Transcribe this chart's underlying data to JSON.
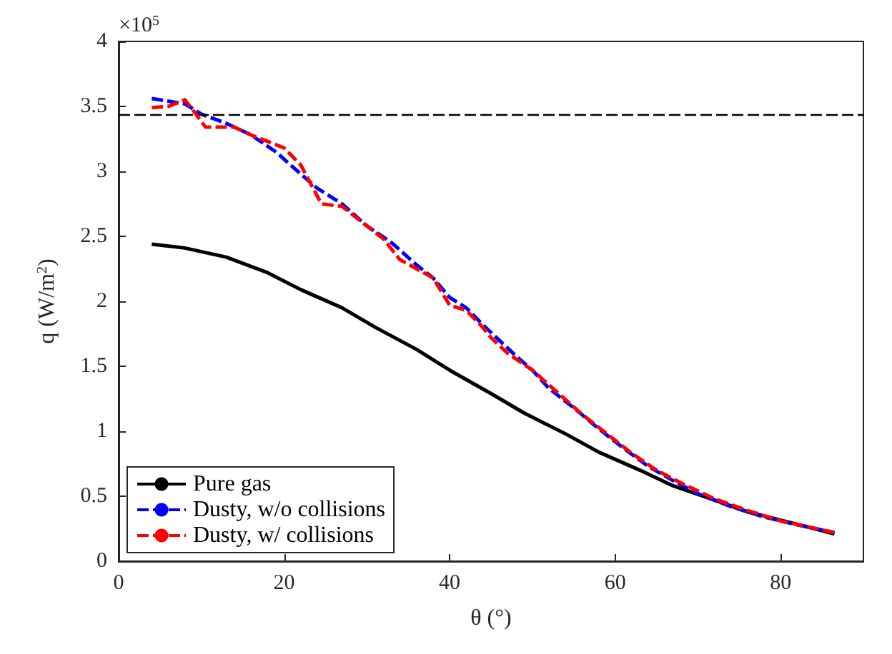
{
  "chart_data": {
    "type": "line",
    "xlabel": "θ (°)",
    "ylabel": "q (W/m$^{2}$)",
    "annotations": [
      "×10$^{5}$"
    ],
    "xlim": [
      0,
      90
    ],
    "xticks": [
      0,
      20,
      40,
      60,
      80
    ],
    "ylim": [
      0,
      4
    ],
    "yticks": [
      0,
      0.5,
      1,
      1.5,
      2,
      2.5,
      3,
      3.5,
      4
    ],
    "grid": false,
    "legend": "bottom left",
    "marker": "none",
    "ref_lines": [
      {
        "axis": "y",
        "value": 3.44,
        "color": "#000000",
        "line_style": "dashed"
      }
    ],
    "series": [
      {
        "name": "Pure gas",
        "color": "#000000",
        "line_style": "solid",
        "x": [
          4,
          8,
          13,
          18,
          22,
          27,
          31,
          36,
          40,
          45,
          49,
          54,
          58,
          63,
          67,
          72,
          76,
          81,
          86.5
        ],
        "values": [
          2.44,
          2.41,
          2.34,
          2.22,
          2.09,
          1.95,
          1.8,
          1.63,
          1.47,
          1.29,
          1.14,
          0.98,
          0.84,
          0.7,
          0.58,
          0.47,
          0.38,
          0.3,
          0.21
        ]
      },
      {
        "name": "Dusty, w/o collisions",
        "color": "#0000ff",
        "line_style": "dashed",
        "x": [
          4,
          8,
          10,
          13,
          16,
          19,
          22,
          24,
          27,
          30,
          33,
          36,
          38,
          40,
          42,
          44,
          46,
          48,
          50,
          52,
          55,
          58,
          61,
          64,
          67,
          70,
          74,
          78,
          82,
          86.5
        ],
        "values": [
          3.56,
          3.52,
          3.44,
          3.37,
          3.28,
          3.15,
          2.98,
          2.87,
          2.75,
          2.58,
          2.45,
          2.28,
          2.18,
          2.03,
          1.95,
          1.82,
          1.7,
          1.58,
          1.47,
          1.33,
          1.18,
          1.02,
          0.87,
          0.73,
          0.62,
          0.52,
          0.42,
          0.34,
          0.28,
          0.22
        ]
      },
      {
        "name": "Dusty, w/ collisions",
        "color": "#ff0000",
        "line_style": "dashed",
        "x": [
          4,
          6,
          8,
          9,
          10.5,
          12,
          14,
          16,
          20,
          22,
          23,
          24.5,
          27,
          30,
          32,
          34,
          36,
          38,
          40,
          42,
          44,
          45,
          47,
          50,
          53,
          56,
          59,
          62,
          65,
          68,
          72,
          76,
          80,
          86.5
        ],
        "values": [
          3.49,
          3.5,
          3.55,
          3.47,
          3.34,
          3.34,
          3.34,
          3.28,
          3.18,
          3.05,
          2.93,
          2.75,
          2.73,
          2.58,
          2.48,
          2.32,
          2.25,
          2.18,
          1.97,
          1.93,
          1.8,
          1.72,
          1.6,
          1.47,
          1.3,
          1.13,
          0.98,
          0.83,
          0.7,
          0.6,
          0.48,
          0.39,
          0.31,
          0.22
        ]
      }
    ]
  }
}
